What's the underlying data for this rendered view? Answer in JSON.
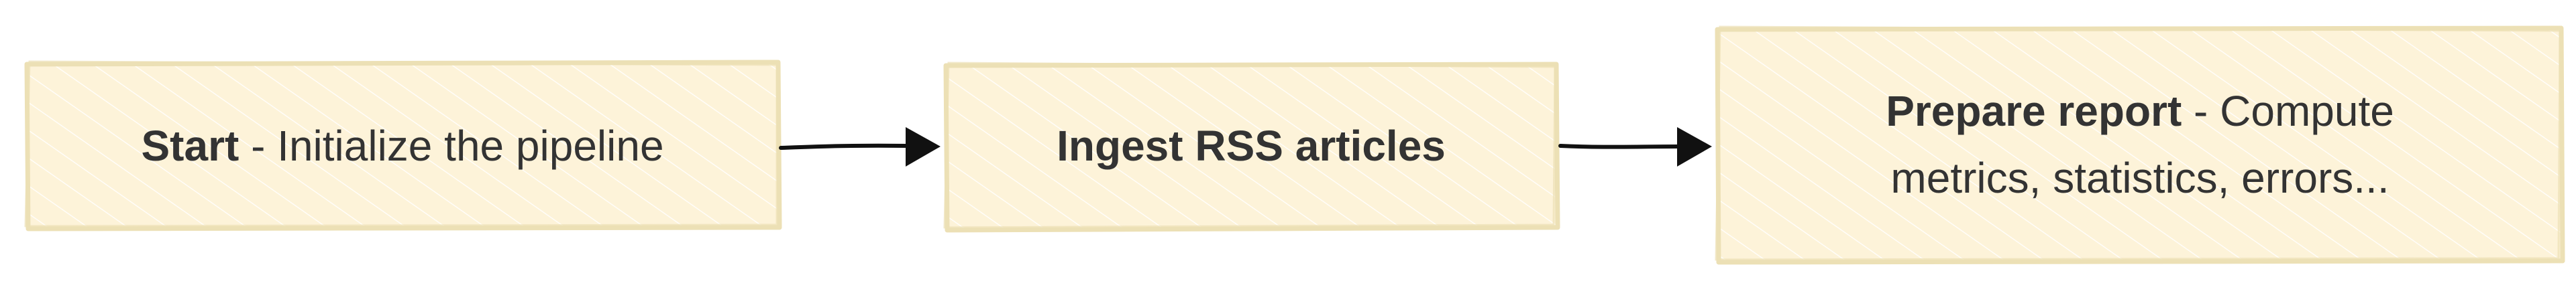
{
  "diagram": {
    "type": "flowchart",
    "style": "hand-drawn",
    "colors": {
      "node_fill": "#fdf3d9",
      "node_border": "#ece0b5",
      "hatch": "#ffffff",
      "text": "#333333",
      "arrow": "#111111"
    },
    "nodes": [
      {
        "id": "start",
        "title": "Start",
        "separator": " - ",
        "description": "Initialize the pipeline"
      },
      {
        "id": "ingest",
        "title": "Ingest RSS articles",
        "separator": "",
        "description": ""
      },
      {
        "id": "report",
        "title": "Prepare report",
        "separator": " - ",
        "description": "Compute metrics, statistics, errors..."
      }
    ],
    "edges": [
      {
        "from": "start",
        "to": "ingest"
      },
      {
        "from": "ingest",
        "to": "report"
      }
    ]
  }
}
